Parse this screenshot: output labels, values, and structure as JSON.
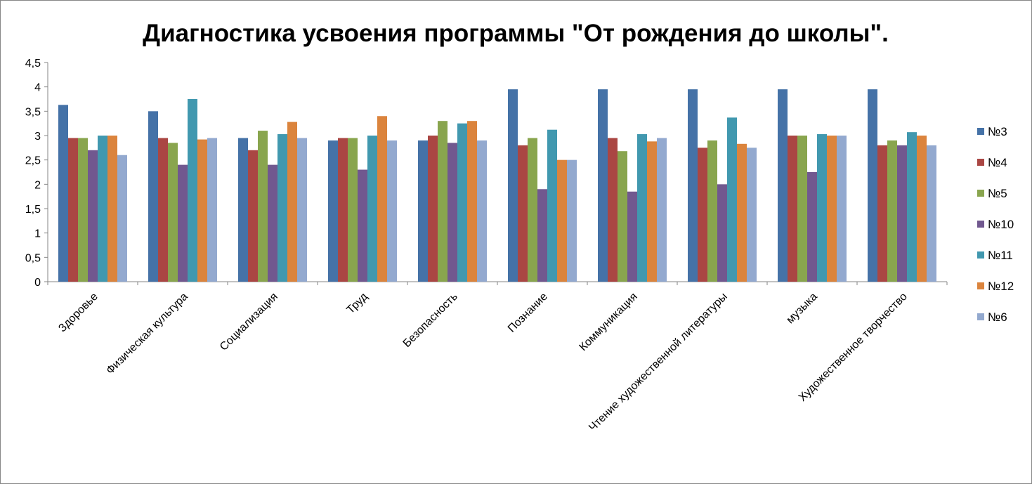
{
  "chart_data": {
    "type": "bar",
    "title": "Диагностика усвоения программы \"От рождения до школы\".",
    "xlabel": "",
    "ylabel": "",
    "ylim": [
      0,
      4.5
    ],
    "y_ticks": [
      "0",
      "0,5",
      "1",
      "1,5",
      "2",
      "2,5",
      "3",
      "3,5",
      "4",
      "4,5"
    ],
    "grid": false,
    "legend_position": "right",
    "categories": [
      "Здоровье",
      "Физическая культура",
      "Социализация",
      "Труд",
      "Безопасность",
      "Познание",
      "Коммуникация",
      "Чтение художественной литературы",
      "музыка",
      "Художественное творчество"
    ],
    "series": [
      {
        "name": "№3",
        "color": "#4572A7",
        "values": [
          3.63,
          3.5,
          2.95,
          2.9,
          2.9,
          3.95,
          3.95,
          3.95,
          3.95,
          3.95
        ]
      },
      {
        "name": "№4",
        "color": "#AA4643",
        "values": [
          2.95,
          2.95,
          2.7,
          2.95,
          3.0,
          2.8,
          2.95,
          2.75,
          3.0,
          2.8
        ]
      },
      {
        "name": "№5",
        "color": "#89A54E",
        "values": [
          2.95,
          2.85,
          3.1,
          2.95,
          3.3,
          2.95,
          2.68,
          2.9,
          3.0,
          2.9
        ]
      },
      {
        "name": "№10",
        "color": "#71588F",
        "values": [
          2.7,
          2.4,
          2.4,
          2.3,
          2.85,
          1.9,
          1.85,
          2.0,
          2.25,
          2.8
        ]
      },
      {
        "name": "№11",
        "color": "#4198AF",
        "values": [
          3.0,
          3.75,
          3.03,
          3.0,
          3.25,
          3.12,
          3.03,
          3.37,
          3.03,
          3.07
        ]
      },
      {
        "name": "№12",
        "color": "#DB843D",
        "values": [
          3.0,
          2.92,
          3.28,
          3.4,
          3.3,
          2.5,
          2.88,
          2.83,
          3.0,
          3.0
        ]
      },
      {
        "name": "№6",
        "color": "#93A9CF",
        "values": [
          2.6,
          2.95,
          2.95,
          2.9,
          2.9,
          2.5,
          2.95,
          2.75,
          3.0,
          2.8
        ]
      }
    ]
  }
}
